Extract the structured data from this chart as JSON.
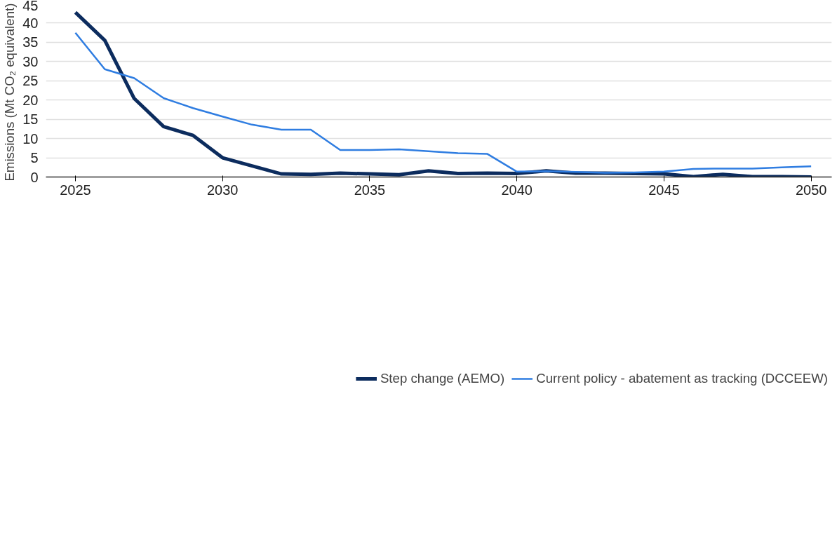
{
  "chart_data": {
    "type": "line",
    "ylabel": "Emissions (Mt  CO₂ equivalent)",
    "x": [
      2025,
      2026,
      2027,
      2028,
      2029,
      2030,
      2031,
      2032,
      2033,
      2034,
      2035,
      2036,
      2037,
      2038,
      2039,
      2040,
      2041,
      2042,
      2043,
      2044,
      2045,
      2046,
      2047,
      2048,
      2049,
      2050
    ],
    "series": [
      {
        "name": "Step change (AEMO)",
        "color": "#0c2c5e",
        "values": [
          42.8,
          35.5,
          20.4,
          13.1,
          10.8,
          5.0,
          2.9,
          0.8,
          0.7,
          1.0,
          0.8,
          0.6,
          1.6,
          0.9,
          1.0,
          0.9,
          1.6,
          1.0,
          1.0,
          0.9,
          0.8,
          0.1,
          0.7,
          0.1,
          0.1,
          0.0
        ]
      },
      {
        "name": "Current policy - abatement as tracking (DCCEEW)",
        "color": "#2f7de1",
        "values": [
          37.5,
          28.0,
          25.7,
          20.5,
          17.9,
          15.7,
          13.6,
          12.3,
          12.3,
          7.0,
          7.0,
          7.2,
          6.7,
          6.2,
          6.0,
          1.4,
          1.5,
          1.3,
          1.1,
          1.2,
          1.4,
          2.1,
          2.2,
          2.2,
          2.5,
          2.8
        ]
      }
    ],
    "xlim": [
      2024,
      2050.7
    ],
    "xticks": [
      2025,
      2030,
      2035,
      2040,
      2045,
      2050
    ],
    "ylim": [
      0,
      45
    ],
    "yticks": [
      0,
      5,
      10,
      15,
      20,
      25,
      30,
      35,
      40,
      45
    ],
    "grid": "y",
    "legend": "bottom",
    "line_style": "solid",
    "marker": "none"
  }
}
